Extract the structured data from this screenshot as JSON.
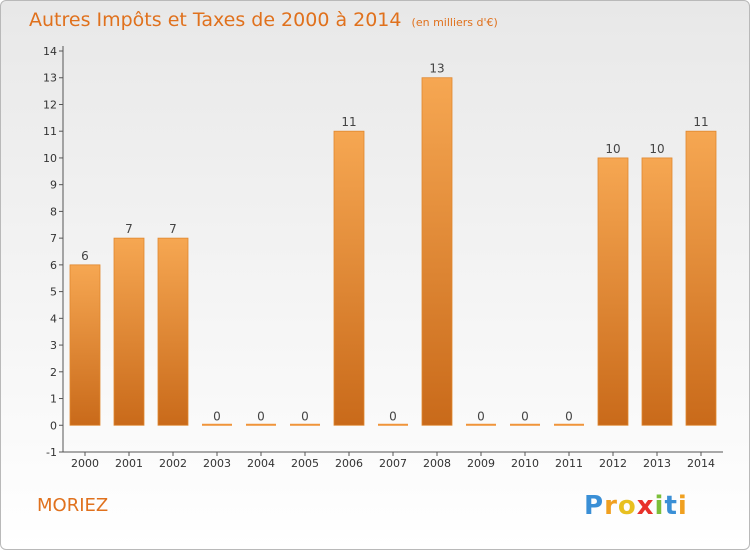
{
  "chart_data": {
    "type": "bar",
    "title": "Autres Impôts et Taxes de 2000 à 2014",
    "subtitle": "(en milliers d'€)",
    "categories": [
      "2000",
      "2001",
      "2002",
      "2003",
      "2004",
      "2005",
      "2006",
      "2007",
      "2008",
      "2009",
      "2010",
      "2011",
      "2012",
      "2013",
      "2014"
    ],
    "values": [
      6,
      7,
      7,
      0,
      0,
      0,
      11,
      0,
      13,
      0,
      0,
      0,
      10,
      10,
      11
    ],
    "ylim": [
      -1,
      14
    ],
    "yticks": [
      -1,
      0,
      1,
      2,
      3,
      4,
      5,
      6,
      7,
      8,
      9,
      10,
      11,
      12,
      13,
      14
    ],
    "grid": false,
    "bar_color": "#f0943a",
    "bar_color_dark": "#c96a1a",
    "accent_color": "#e0711d"
  },
  "commune": "MORIEZ",
  "logo": {
    "letters": [
      "P",
      "r",
      "o",
      "x",
      "i",
      "t",
      "i"
    ],
    "colors": [
      "#3a8fd6",
      "#f0a020",
      "#e8c020",
      "#e8312a",
      "#7cbf3a",
      "#3a8fd6",
      "#f0a020"
    ]
  }
}
